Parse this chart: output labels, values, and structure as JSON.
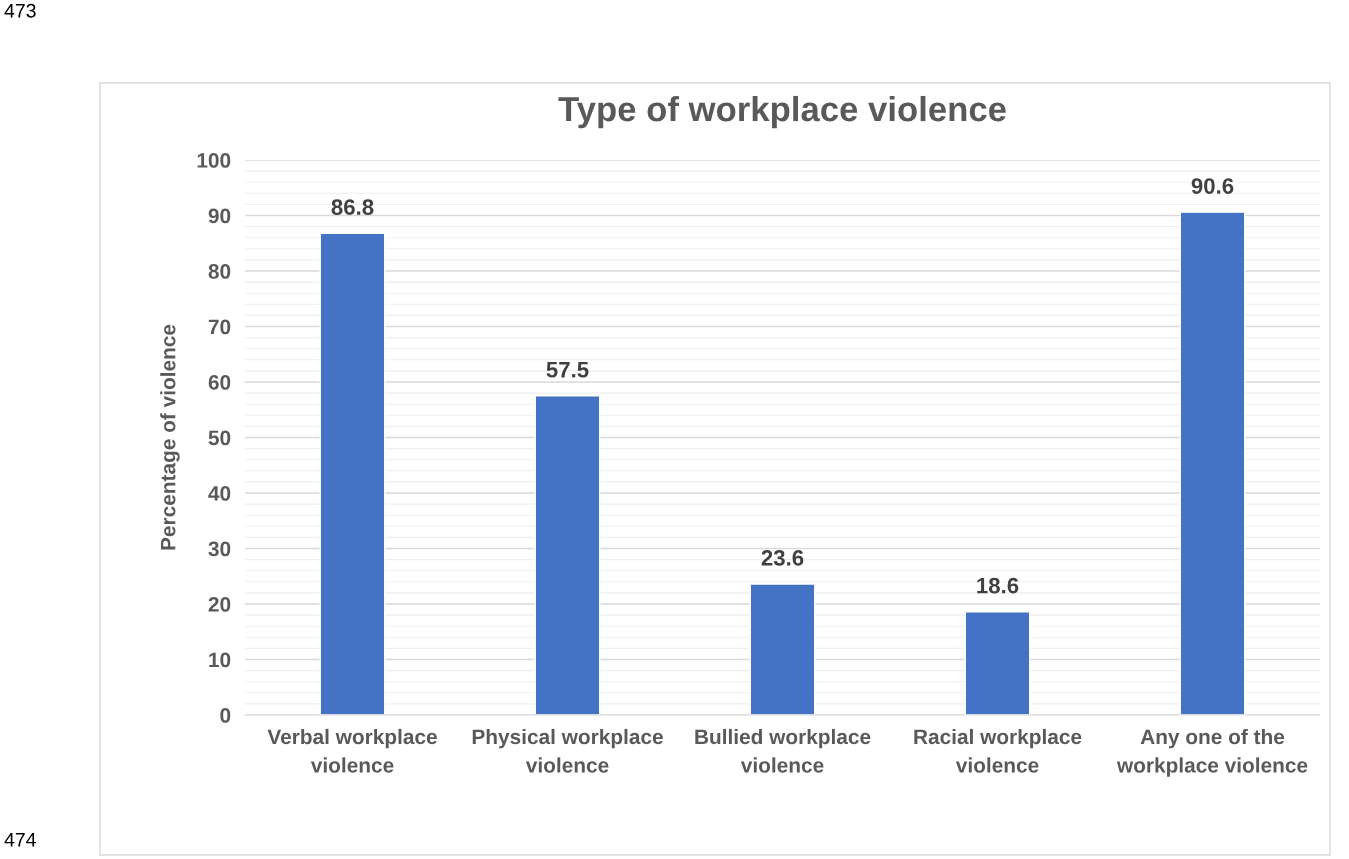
{
  "chart_data": {
    "type": "bar",
    "title": "Type of workplace violence",
    "ylabel": "Percentage of violence",
    "categories": [
      "Verbal workplace violence",
      "Physical workplace violence",
      "Bullied workplace violence",
      "Racial workplace violence",
      "Any one of the workplace violence"
    ],
    "values": [
      86.8,
      57.5,
      23.6,
      18.6,
      90.6
    ],
    "color": "#4472c4",
    "ylim": [
      0,
      100
    ],
    "yticks": [
      0,
      10,
      20,
      30,
      40,
      50,
      60,
      70,
      80,
      90,
      100
    ],
    "grid": "y",
    "data_labels": true,
    "annotations": [
      "473",
      "474"
    ]
  }
}
